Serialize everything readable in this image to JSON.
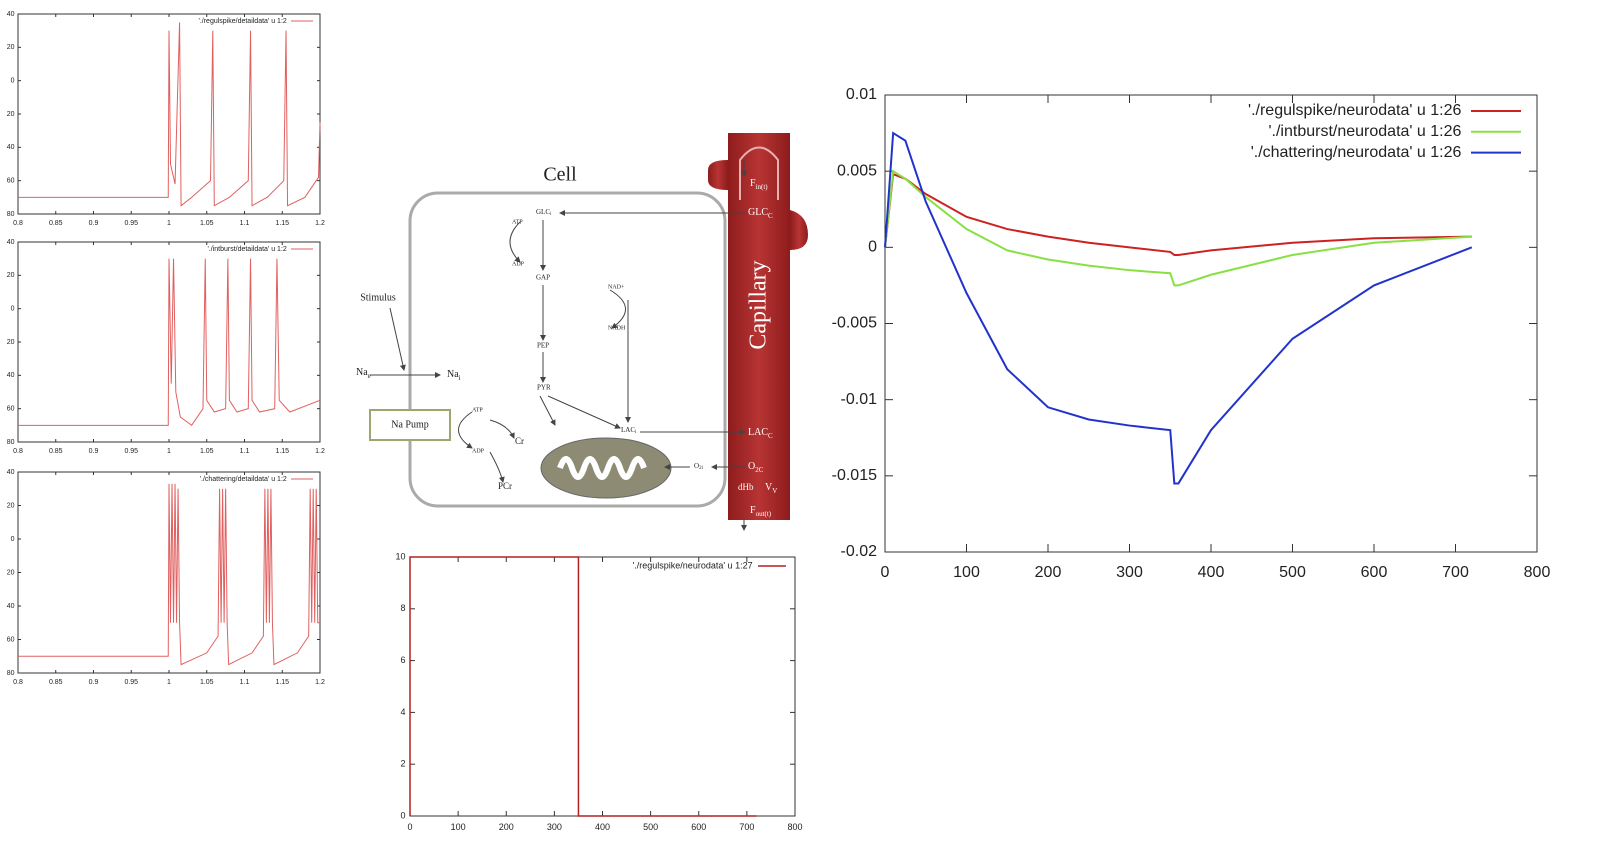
{
  "chart_data": [
    {
      "type": "line",
      "xlim": [
        0.8,
        1.2
      ],
      "ylim": [
        -80,
        40
      ],
      "xticks": [
        0.8,
        0.85,
        0.9,
        0.95,
        1,
        1.05,
        1.1,
        1.15,
        1.2
      ],
      "yticks": [
        {
          "value": -80,
          "label": "80"
        },
        {
          "value": -60,
          "label": "60"
        },
        {
          "value": -40,
          "label": "40"
        },
        {
          "value": -20,
          "label": "20"
        },
        0,
        20,
        40
      ],
      "legend": "upper right",
      "x": [
        0.8,
        0.999,
        1.0,
        1.002,
        1.008,
        1.014,
        1.016,
        1.03,
        1.055,
        1.058,
        1.06,
        1.08,
        1.105,
        1.108,
        1.11,
        1.13,
        1.152,
        1.155,
        1.157,
        1.18,
        1.198,
        1.2
      ],
      "series": [
        {
          "name": "'./regulspike/detaildata' u 1:2",
          "color": "#e06060",
          "values": [
            -70,
            -70,
            30,
            -50,
            -62,
            35,
            -75,
            -70,
            -60,
            30,
            -75,
            -70,
            -60,
            30,
            -75,
            -70,
            -60,
            30,
            -75,
            -70,
            -58,
            -25
          ]
        }
      ]
    },
    {
      "type": "line",
      "xlim": [
        0.8,
        1.2
      ],
      "ylim": [
        -80,
        40
      ],
      "xticks": [
        0.8,
        0.85,
        0.9,
        0.95,
        1,
        1.05,
        1.1,
        1.15,
        1.2
      ],
      "yticks": [
        {
          "value": -80,
          "label": "80"
        },
        {
          "value": -60,
          "label": "60"
        },
        {
          "value": -40,
          "label": "40"
        },
        {
          "value": -20,
          "label": "20"
        },
        0,
        20,
        40
      ],
      "legend": "upper right",
      "x": [
        0.8,
        0.999,
        1.0,
        1.003,
        1.006,
        1.009,
        1.015,
        1.03,
        1.045,
        1.048,
        1.05,
        1.06,
        1.075,
        1.078,
        1.08,
        1.09,
        1.105,
        1.108,
        1.11,
        1.12,
        1.14,
        1.143,
        1.146,
        1.16,
        1.2
      ],
      "series": [
        {
          "name": "'./intburst/detaildata' u 1:2",
          "color": "#e06060",
          "values": [
            -70,
            -70,
            30,
            -45,
            30,
            -50,
            -65,
            -70,
            -60,
            30,
            -55,
            -62,
            -60,
            30,
            -55,
            -62,
            -60,
            30,
            -55,
            -62,
            -60,
            30,
            -55,
            -62,
            -55
          ]
        }
      ]
    },
    {
      "type": "line",
      "xlim": [
        0.8,
        1.2
      ],
      "ylim": [
        -80,
        40
      ],
      "xticks": [
        0.8,
        0.85,
        0.9,
        0.95,
        1,
        1.05,
        1.1,
        1.15,
        1.2
      ],
      "yticks": [
        {
          "value": -80,
          "label": "80"
        },
        {
          "value": -60,
          "label": "60"
        },
        {
          "value": -40,
          "label": "40"
        },
        {
          "value": -20,
          "label": "20"
        },
        0,
        20,
        40
      ],
      "legend": "upper right",
      "x": [
        0.8,
        0.999,
        1.0,
        1.002,
        1.004,
        1.006,
        1.008,
        1.01,
        1.012,
        1.014,
        1.016,
        1.05,
        1.065,
        1.067,
        1.069,
        1.071,
        1.073,
        1.075,
        1.077,
        1.079,
        1.11,
        1.125,
        1.127,
        1.129,
        1.131,
        1.133,
        1.135,
        1.137,
        1.139,
        1.17,
        1.185,
        1.187,
        1.189,
        1.191,
        1.193,
        1.195,
        1.197,
        1.2
      ],
      "series": [
        {
          "name": "'./chattering/detaildata' u 1:2",
          "color": "#e06060",
          "values": [
            -70,
            -70,
            33,
            -50,
            33,
            -50,
            33,
            -50,
            30,
            -50,
            -75,
            -68,
            -58,
            30,
            -50,
            30,
            -50,
            30,
            -50,
            -75,
            -68,
            -58,
            30,
            -50,
            30,
            -50,
            30,
            -50,
            -75,
            -68,
            -58,
            30,
            -50,
            30,
            -50,
            30,
            -50,
            -50
          ]
        }
      ]
    },
    {
      "type": "line",
      "xlim": [
        0,
        800
      ],
      "ylim": [
        0,
        10
      ],
      "xticks": [
        0,
        100,
        200,
        300,
        400,
        500,
        600,
        700,
        800
      ],
      "yticks": [
        0,
        2,
        4,
        6,
        8,
        10
      ],
      "legend": "upper right",
      "x": [
        0,
        0,
        350,
        350,
        720
      ],
      "series": [
        {
          "name": "'./regulspike/neurodata' u 1:27",
          "color": "#b22222",
          "values": [
            0,
            10,
            10,
            0,
            0
          ]
        }
      ]
    },
    {
      "type": "line",
      "xlim": [
        0,
        800
      ],
      "ylim": [
        -0.02,
        0.01
      ],
      "xticks": [
        0,
        100,
        200,
        300,
        400,
        500,
        600,
        700,
        800
      ],
      "yticks": [
        -0.02,
        -0.015,
        -0.01,
        -0.005,
        0,
        0.005,
        0.01
      ],
      "legend": "upper right",
      "x": [
        0,
        10,
        25,
        50,
        100,
        150,
        200,
        250,
        300,
        350,
        355,
        360,
        400,
        500,
        600,
        720
      ],
      "series": [
        {
          "name": "'./regulspike/neurodata' u 1:26",
          "color": "#cc2222",
          "values": [
            0,
            0.0048,
            0.0045,
            0.0035,
            0.002,
            0.0012,
            0.0007,
            0.0003,
            0,
            -0.0003,
            -0.0005,
            -0.0005,
            -0.0002,
            0.0003,
            0.0006,
            0.0007
          ]
        },
        {
          "name": "'./intburst/neurodata' u 1:26",
          "color": "#88e044",
          "values": [
            0,
            0.005,
            0.0045,
            0.0033,
            0.0012,
            -0.0002,
            -0.0008,
            -0.0012,
            -0.0015,
            -0.0017,
            -0.0025,
            -0.0025,
            -0.0018,
            -0.0005,
            0.0003,
            0.0007
          ]
        },
        {
          "name": "'./chattering/neurodata' u 1:26",
          "color": "#2233cc",
          "values": [
            0,
            0.0075,
            0.007,
            0.003,
            -0.003,
            -0.008,
            -0.0105,
            -0.0113,
            -0.0117,
            -0.012,
            -0.0155,
            -0.0155,
            -0.012,
            -0.006,
            -0.0025,
            0
          ]
        }
      ]
    }
  ],
  "diagram": {
    "cell_title": "Cell",
    "capillary": "Capillary",
    "stimulus": "Stimulus",
    "na_pump": "Na Pump",
    "labels": [
      {
        "text": "Na",
        "sub": "e"
      },
      {
        "text": "Na",
        "sub": "i"
      },
      {
        "text": "ATP"
      },
      {
        "text": "ADP"
      },
      {
        "text": "GLC",
        "sub": "i"
      },
      {
        "text": "GAP"
      },
      {
        "text": "Cr"
      },
      {
        "text": "PCr"
      },
      {
        "text": "PEP"
      },
      {
        "text": "PYR"
      },
      {
        "text": "NAD+"
      },
      {
        "text": "NADH"
      },
      {
        "text": "LAC",
        "sub": "i"
      },
      {
        "text": "O",
        "sub": "2i"
      },
      {
        "text": "F",
        "sub": "in(t)"
      },
      {
        "text": "GLC",
        "sub": "C"
      },
      {
        "text": "LAC",
        "sub": "C"
      },
      {
        "text": "O",
        "sub": "2C"
      },
      {
        "text": "dHb"
      },
      {
        "text": "V",
        "sub": "V"
      },
      {
        "text": "F",
        "sub": "out(t)"
      }
    ]
  }
}
